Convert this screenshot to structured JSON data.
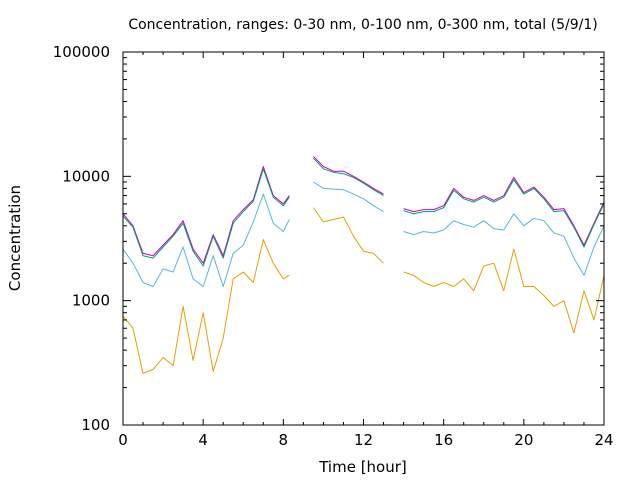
{
  "chart_data": {
    "type": "line",
    "title": "Concentration, ranges: 0-30 nm, 0-100 nm, 0-300 nm, total (5/9/1)",
    "xlabel": "Time [hour]",
    "ylabel": "Concentration",
    "xlim": [
      0,
      24
    ],
    "ylim": [
      100,
      100000
    ],
    "yscale": "log",
    "grid": false,
    "legend": "none",
    "x_ticks": [
      0,
      4,
      8,
      12,
      16,
      20,
      24
    ],
    "x_tick_labels": [
      "0",
      "4",
      "8",
      "12",
      "16",
      "20",
      "24"
    ],
    "y_ticks": [
      100,
      1000,
      10000,
      100000
    ],
    "y_tick_labels": [
      "100",
      "1000",
      "10000",
      "100000"
    ],
    "x": [
      0,
      0.5,
      1,
      1.5,
      2,
      2.5,
      3,
      3.5,
      4,
      4.5,
      5,
      5.5,
      6,
      6.5,
      7,
      7.5,
      8,
      8.3,
      8.5,
      9,
      9.5,
      10,
      10.5,
      11,
      11.5,
      12,
      12.5,
      13,
      13.5,
      14,
      14.5,
      15,
      15.5,
      16,
      16.5,
      17,
      17.5,
      18,
      18.5,
      19,
      19.5,
      20,
      20.5,
      21,
      21.5,
      22,
      22.5,
      23,
      23.5,
      24
    ],
    "series": [
      {
        "color": "#cc00cc",
        "values": [
          5000,
          4000,
          2400,
          2300,
          2800,
          3400,
          4400,
          2600,
          2000,
          3400,
          2300,
          4400,
          5400,
          6500,
          12000,
          7000,
          6000,
          7000,
          null,
          null,
          14500,
          12000,
          11000,
          11000,
          10000,
          9000,
          8000,
          7200,
          null,
          5500,
          5200,
          5400,
          5400,
          5800,
          8000,
          6800,
          6400,
          7000,
          6400,
          7000,
          9800,
          7400,
          8200,
          6800,
          5400,
          5500,
          4000,
          2800,
          4200,
          6200
        ]
      },
      {
        "color": "#009e73",
        "values": [
          4800,
          3900,
          2300,
          2200,
          2700,
          3300,
          4200,
          2500,
          1900,
          3300,
          2200,
          4200,
          5200,
          6300,
          11500,
          6800,
          5800,
          6800,
          null,
          null,
          14000,
          11500,
          10800,
          10500,
          9800,
          8800,
          7800,
          7000,
          null,
          5300,
          5000,
          5200,
          5200,
          5600,
          7700,
          6600,
          6200,
          6800,
          6200,
          6800,
          9400,
          7200,
          8000,
          6600,
          5200,
          5300,
          3900,
          2700,
          4100,
          6000
        ]
      },
      {
        "color": "#56b4e9",
        "values": [
          2600,
          2000,
          1400,
          1300,
          1800,
          1700,
          2700,
          1500,
          1300,
          2300,
          1300,
          2400,
          2800,
          4300,
          7200,
          4200,
          3600,
          4500,
          null,
          null,
          9000,
          8000,
          7900,
          7800,
          7200,
          6600,
          5800,
          5200,
          null,
          3600,
          3400,
          3600,
          3500,
          3700,
          4400,
          4100,
          3900,
          4400,
          3800,
          3700,
          5000,
          4000,
          4600,
          4400,
          3500,
          3300,
          2200,
          1600,
          2700,
          4000
        ]
      },
      {
        "color": "#e69f00",
        "values": [
          750,
          600,
          260,
          280,
          350,
          300,
          900,
          330,
          800,
          270,
          500,
          1500,
          1700,
          1400,
          3100,
          2000,
          1500,
          1600,
          null,
          null,
          5600,
          4300,
          4500,
          4700,
          3300,
          2500,
          2400,
          2000,
          null,
          1700,
          1600,
          1400,
          1300,
          1400,
          1300,
          1500,
          1200,
          1900,
          2000,
          1200,
          2600,
          1300,
          1300,
          1100,
          900,
          1000,
          550,
          1200,
          700,
          1600
        ]
      }
    ]
  }
}
